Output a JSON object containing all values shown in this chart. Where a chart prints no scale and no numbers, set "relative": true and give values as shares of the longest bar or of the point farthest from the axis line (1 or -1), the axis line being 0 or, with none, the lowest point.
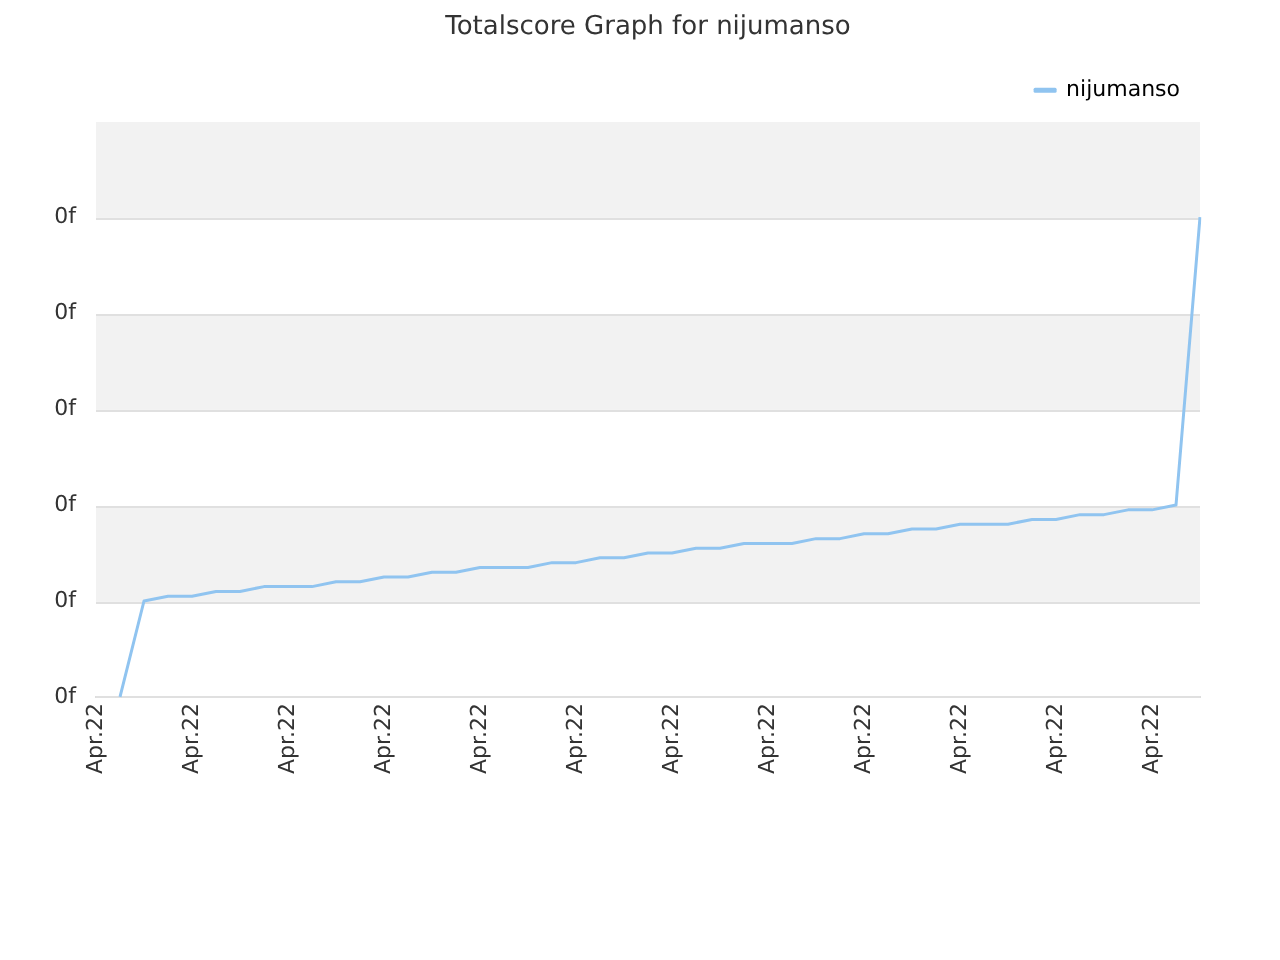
{
  "chart_data": {
    "type": "line",
    "title": "Totalscore Graph for nijumanso",
    "categories": [
      "Apr.22",
      null,
      null,
      null,
      "Apr.22",
      null,
      null,
      null,
      "Apr.22",
      null,
      null,
      null,
      "Apr.22",
      null,
      null,
      null,
      "Apr.22",
      null,
      null,
      null,
      "Apr.22",
      null,
      null,
      null,
      "Apr.22",
      null,
      null,
      null,
      "Apr.22",
      null,
      null,
      null,
      "Apr.22",
      null,
      null,
      null,
      "Apr.22",
      null,
      null,
      null,
      "Apr.22",
      null,
      null,
      null,
      "Apr.22",
      null,
      null
    ],
    "series": [
      {
        "name": "nijumanso",
        "color": "#90c4f0",
        "values": [
          null,
          0,
          0.2,
          0.21,
          0.21,
          0.22,
          0.22,
          0.23,
          0.23,
          0.23,
          0.24,
          0.24,
          0.25,
          0.25,
          0.26,
          0.26,
          0.27,
          0.27,
          0.27,
          0.28,
          0.28,
          0.29,
          0.29,
          0.3,
          0.3,
          0.31,
          0.31,
          0.32,
          0.32,
          0.32,
          0.33,
          0.33,
          0.34,
          0.34,
          0.35,
          0.35,
          0.36,
          0.36,
          0.36,
          0.37,
          0.37,
          0.38,
          0.38,
          0.39,
          0.39,
          0.4,
          1
        ]
      }
    ],
    "relative": true,
    "annotations": [
      "0f",
      "0f",
      "0f",
      "0f",
      "0f",
      "0f"
    ],
    "grid": "y",
    "legend": "top right",
    "marker": "none",
    "line_style": "solid"
  }
}
